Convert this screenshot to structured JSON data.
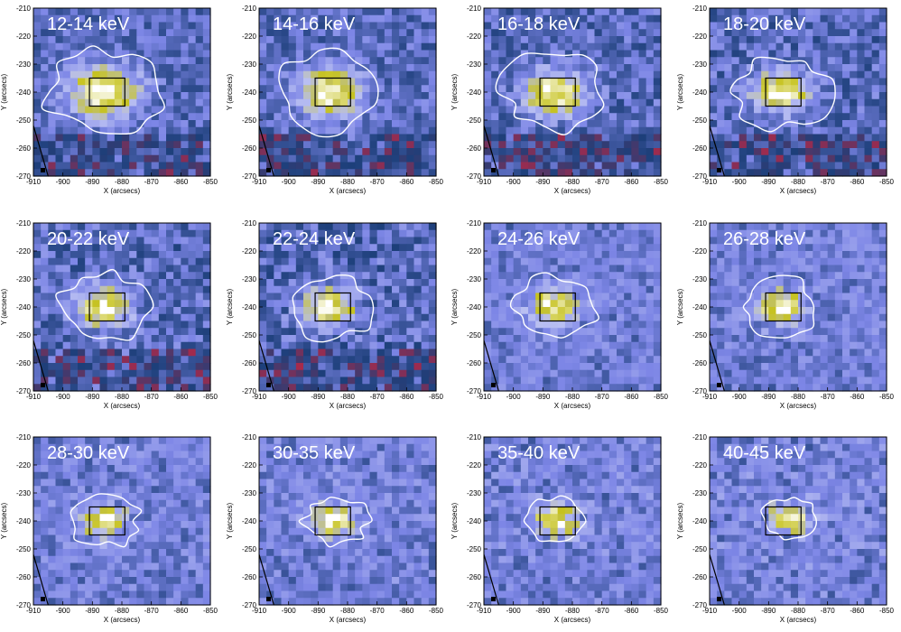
{
  "figure": {
    "colors": {
      "background_low": "#d8223a",
      "mid_blue": "#1d3f7a",
      "light_blue": "#7d86e6",
      "pale": "#b9bff2",
      "peak_yellow": "#c6c21e",
      "peak_white": "#ffffff",
      "contour": "#ffffff",
      "box": "#000000",
      "limb": "#000000"
    }
  },
  "chart_data": [
    {
      "type": "heatmap",
      "title": "12-14 keV",
      "xlabel": "X (arcsecs)",
      "ylabel": "Y (arcsecs)",
      "xlim": [
        -910,
        -850
      ],
      "ylim": [
        -270,
        -210
      ],
      "xticks": [
        -910,
        -900,
        -890,
        -880,
        -870,
        -860,
        -850
      ],
      "yticks": [
        -270,
        -260,
        -250,
        -240,
        -230,
        -220,
        -210
      ],
      "box": {
        "x": [
          -891,
          -879
        ],
        "y": [
          -245,
          -235
        ]
      },
      "peak": {
        "x": -886,
        "y": -240
      },
      "contour_level": "white"
    },
    {
      "type": "heatmap",
      "title": "14-16 keV",
      "xlabel": "X (arcsecs)",
      "ylabel": "Y (arcsecs)",
      "xlim": [
        -910,
        -850
      ],
      "ylim": [
        -270,
        -210
      ],
      "xticks": [
        -910,
        -900,
        -890,
        -880,
        -870,
        -860,
        -850
      ],
      "yticks": [
        -270,
        -260,
        -250,
        -240,
        -230,
        -220,
        -210
      ],
      "box": {
        "x": [
          -891,
          -879
        ],
        "y": [
          -245,
          -235
        ]
      },
      "peak": {
        "x": -886,
        "y": -240
      },
      "contour_level": "white"
    },
    {
      "type": "heatmap",
      "title": "16-18 keV",
      "xlabel": "X (arcsecs)",
      "ylabel": "Y (arcsecs)",
      "xlim": [
        -910,
        -850
      ],
      "ylim": [
        -270,
        -210
      ],
      "xticks": [
        -910,
        -900,
        -890,
        -880,
        -870,
        -860,
        -850
      ],
      "yticks": [
        -270,
        -260,
        -250,
        -240,
        -230,
        -220,
        -210
      ],
      "box": {
        "x": [
          -891,
          -879
        ],
        "y": [
          -245,
          -235
        ]
      },
      "peak": {
        "x": -886,
        "y": -240
      },
      "contour_level": "white"
    },
    {
      "type": "heatmap",
      "title": "18-20 keV",
      "xlabel": "X (arcsecs)",
      "ylabel": "Y (arcsecs)",
      "xlim": [
        -910,
        -850
      ],
      "ylim": [
        -270,
        -210
      ],
      "xticks": [
        -910,
        -900,
        -890,
        -880,
        -870,
        -860,
        -850
      ],
      "yticks": [
        -270,
        -260,
        -250,
        -240,
        -230,
        -220,
        -210
      ],
      "box": {
        "x": [
          -891,
          -879
        ],
        "y": [
          -245,
          -235
        ]
      },
      "peak": {
        "x": -886,
        "y": -240
      },
      "contour_level": "white"
    },
    {
      "type": "heatmap",
      "title": "20-22 keV",
      "xlabel": "X (arcsecs)",
      "ylabel": "Y (arcsecs)",
      "xlim": [
        -910,
        -850
      ],
      "ylim": [
        -270,
        -210
      ],
      "xticks": [
        -910,
        -900,
        -890,
        -880,
        -870,
        -860,
        -850
      ],
      "yticks": [
        -270,
        -260,
        -250,
        -240,
        -230,
        -220,
        -210
      ],
      "box": {
        "x": [
          -891,
          -879
        ],
        "y": [
          -245,
          -235
        ]
      },
      "peak": {
        "x": -886,
        "y": -240
      },
      "contour_level": "white"
    },
    {
      "type": "heatmap",
      "title": "22-24 keV",
      "xlabel": "X (arcsecs)",
      "ylabel": "Y (arcsecs)",
      "xlim": [
        -910,
        -850
      ],
      "ylim": [
        -270,
        -210
      ],
      "xticks": [
        -910,
        -900,
        -890,
        -880,
        -870,
        -860,
        -850
      ],
      "yticks": [
        -270,
        -260,
        -250,
        -240,
        -230,
        -220,
        -210
      ],
      "box": {
        "x": [
          -891,
          -879
        ],
        "y": [
          -245,
          -235
        ]
      },
      "peak": {
        "x": -886,
        "y": -240
      },
      "contour_level": "white"
    },
    {
      "type": "heatmap",
      "title": "24-26 keV",
      "xlabel": "X (arcsecs)",
      "ylabel": "Y (arcsecs)",
      "xlim": [
        -910,
        -850
      ],
      "ylim": [
        -270,
        -210
      ],
      "xticks": [
        -910,
        -900,
        -890,
        -880,
        -870,
        -860,
        -850
      ],
      "yticks": [
        -270,
        -260,
        -250,
        -240,
        -230,
        -220,
        -210
      ],
      "box": {
        "x": [
          -891,
          -879
        ],
        "y": [
          -245,
          -235
        ]
      },
      "peak": {
        "x": -886,
        "y": -240
      },
      "contour_level": "white"
    },
    {
      "type": "heatmap",
      "title": "26-28 keV",
      "xlabel": "X (arcsecs)",
      "ylabel": "Y (arcsecs)",
      "xlim": [
        -910,
        -850
      ],
      "ylim": [
        -270,
        -210
      ],
      "xticks": [
        -910,
        -900,
        -890,
        -880,
        -870,
        -860,
        -850
      ],
      "yticks": [
        -270,
        -260,
        -250,
        -240,
        -230,
        -220,
        -210
      ],
      "box": {
        "x": [
          -891,
          -879
        ],
        "y": [
          -245,
          -235
        ]
      },
      "peak": {
        "x": -886,
        "y": -240
      },
      "contour_level": "white"
    },
    {
      "type": "heatmap",
      "title": "28-30 keV",
      "xlabel": "X (arcsecs)",
      "ylabel": "Y (arcsecs)",
      "xlim": [
        -910,
        -850
      ],
      "ylim": [
        -270,
        -210
      ],
      "xticks": [
        -910,
        -900,
        -890,
        -880,
        -870,
        -860,
        -850
      ],
      "yticks": [
        -270,
        -260,
        -250,
        -240,
        -230,
        -220,
        -210
      ],
      "box": {
        "x": [
          -891,
          -879
        ],
        "y": [
          -245,
          -235
        ]
      },
      "peak": {
        "x": -886,
        "y": -240
      },
      "contour_level": "white"
    },
    {
      "type": "heatmap",
      "title": "30-35 keV",
      "xlabel": "X (arcsecs)",
      "ylabel": "Y (arcsecs)",
      "xlim": [
        -910,
        -850
      ],
      "ylim": [
        -270,
        -210
      ],
      "xticks": [
        -910,
        -900,
        -890,
        -880,
        -870,
        -860,
        -850
      ],
      "yticks": [
        -270,
        -260,
        -250,
        -240,
        -230,
        -220,
        -210
      ],
      "box": {
        "x": [
          -891,
          -879
        ],
        "y": [
          -245,
          -235
        ]
      },
      "peak": {
        "x": -884,
        "y": -240
      },
      "contour_level": "white"
    },
    {
      "type": "heatmap",
      "title": "35-40 keV",
      "xlabel": "X (arcsecs)",
      "ylabel": "Y (arcsecs)",
      "xlim": [
        -910,
        -850
      ],
      "ylim": [
        -270,
        -210
      ],
      "xticks": [
        -910,
        -900,
        -890,
        -880,
        -870,
        -860,
        -850
      ],
      "yticks": [
        -270,
        -260,
        -250,
        -240,
        -230,
        -220,
        -210
      ],
      "box": {
        "x": [
          -891,
          -879
        ],
        "y": [
          -245,
          -235
        ]
      },
      "peak": {
        "x": -886,
        "y": -240
      },
      "contour_level": "white"
    },
    {
      "type": "heatmap",
      "title": "40-45 keV",
      "xlabel": "X (arcsecs)",
      "ylabel": "Y (arcsecs)",
      "xlim": [
        -910,
        -850
      ],
      "ylim": [
        -270,
        -210
      ],
      "xticks": [
        -910,
        -900,
        -890,
        -880,
        -870,
        -860,
        -850
      ],
      "yticks": [
        -270,
        -260,
        -250,
        -240,
        -230,
        -220,
        -210
      ],
      "box": {
        "x": [
          -891,
          -879
        ],
        "y": [
          -245,
          -235
        ]
      },
      "peak": {
        "x": -883,
        "y": -239
      },
      "contour_level": "white"
    }
  ]
}
